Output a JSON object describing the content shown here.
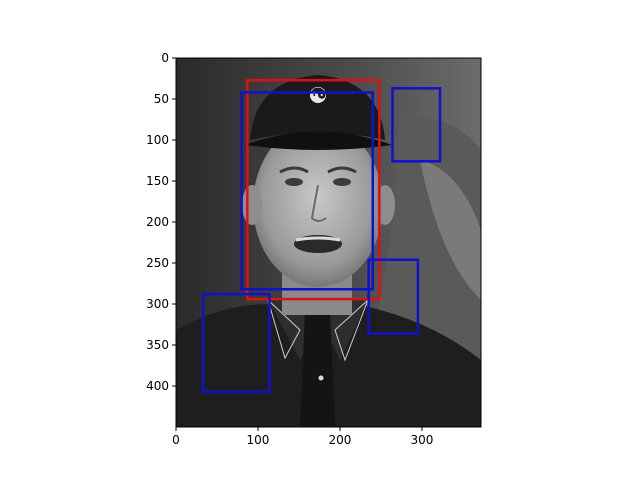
{
  "figure": {
    "type": "image-with-detection-boxes",
    "background_color": "#ffffff",
    "image_extent": {
      "x": [
        0,
        372
      ],
      "y": [
        0,
        450
      ]
    },
    "y_axis_inverted": true
  },
  "axes": {
    "x_ticks": [
      0,
      100,
      200,
      300
    ],
    "y_ticks": [
      0,
      50,
      100,
      150,
      200,
      250,
      300,
      350,
      400
    ]
  },
  "image": {
    "description_icon": "grayscale-portrait-photo",
    "tones": {
      "dark": "#1c1c1c",
      "mid": "#6e6e6e",
      "light": "#bcbcbc",
      "bg": "#3a3a3a"
    }
  },
  "boxes": [
    {
      "label": "red-box",
      "color": "#dd1111",
      "x": [
        87,
        248
      ],
      "y": [
        27,
        294
      ]
    },
    {
      "label": "blue-box-face",
      "color": "#1111cc",
      "x": [
        80,
        240
      ],
      "y": [
        42,
        282
      ]
    },
    {
      "label": "blue-box-top-right",
      "color": "#1111cc",
      "x": [
        264,
        322
      ],
      "y": [
        37,
        126
      ]
    },
    {
      "label": "blue-box-mid-right",
      "color": "#1111cc",
      "x": [
        235,
        295
      ],
      "y": [
        246,
        336
      ]
    },
    {
      "label": "blue-box-bottom-left",
      "color": "#1111cc",
      "x": [
        33,
        114
      ],
      "y": [
        288,
        407
      ]
    }
  ]
}
